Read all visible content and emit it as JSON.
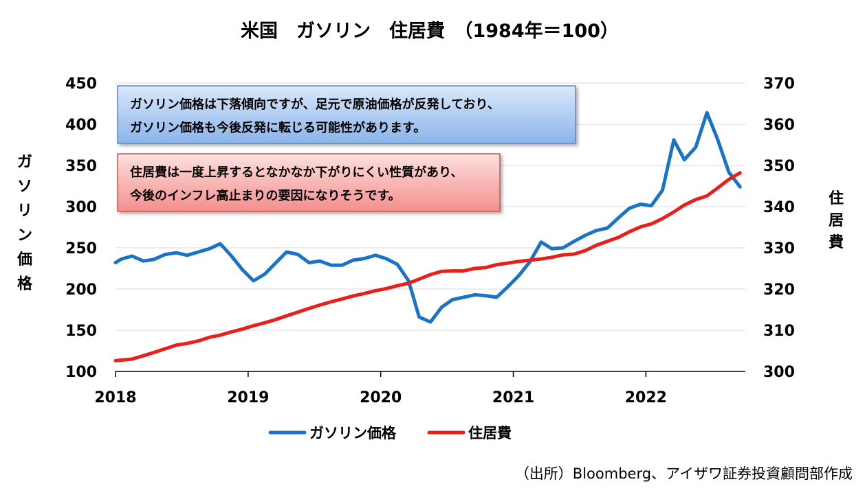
{
  "chart_data": {
    "type": "line",
    "title": "米国　ガソリン　住居費　（1984年＝100）",
    "y_left_label": "ガソリン価格",
    "y_right_label": "住居費",
    "y_left_ticks": [
      "450",
      "400",
      "350",
      "300",
      "250",
      "200",
      "150",
      "100"
    ],
    "y_right_ticks": [
      "370",
      "360",
      "350",
      "340",
      "330",
      "320",
      "310",
      "300"
    ],
    "x_ticks": [
      "2018",
      "2019",
      "2020",
      "2021",
      "2022"
    ],
    "ylim_left": [
      100,
      450
    ],
    "ylim_right": [
      300,
      370
    ],
    "xlim": [
      2018.0,
      2022.75
    ],
    "grid": true,
    "legend_position": "bottom",
    "series": [
      {
        "name": "ガソリン価格",
        "axis": "left",
        "color": "#1a73c4",
        "x": [
          2018.0,
          2018.04,
          2018.08,
          2018.125,
          2018.21,
          2018.29,
          2018.375,
          2018.46,
          2018.54,
          2018.625,
          2018.71,
          2018.79,
          2018.875,
          2018.96,
          2019.04,
          2019.125,
          2019.21,
          2019.29,
          2019.375,
          2019.46,
          2019.54,
          2019.625,
          2019.71,
          2019.79,
          2019.875,
          2019.96,
          2020.04,
          2020.125,
          2020.21,
          2020.29,
          2020.375,
          2020.46,
          2020.54,
          2020.625,
          2020.71,
          2020.79,
          2020.875,
          2020.96,
          2021.04,
          2021.125,
          2021.21,
          2021.29,
          2021.375,
          2021.46,
          2021.54,
          2021.625,
          2021.71,
          2021.79,
          2021.875,
          2021.96,
          2022.04,
          2022.125,
          2022.21,
          2022.29,
          2022.375,
          2022.46,
          2022.54,
          2022.625,
          2022.71
        ],
        "values": [
          232,
          236,
          238,
          240,
          234,
          236,
          242,
          244,
          241,
          245,
          249,
          255,
          240,
          223,
          210,
          218,
          232,
          245,
          242,
          232,
          234,
          229,
          229,
          235,
          237,
          241,
          237,
          230,
          210,
          166,
          160,
          178,
          187,
          190,
          193,
          192,
          190,
          203,
          216,
          233,
          257,
          249,
          250,
          258,
          265,
          271,
          274,
          286,
          298,
          303,
          301,
          320,
          381,
          357,
          372,
          414,
          382,
          342,
          324
        ]
      },
      {
        "name": "住居費",
        "axis": "right",
        "color": "#e8201a",
        "x": [
          2018.0,
          2018.125,
          2018.21,
          2018.29,
          2018.375,
          2018.46,
          2018.54,
          2018.625,
          2018.71,
          2018.79,
          2018.875,
          2018.96,
          2019.04,
          2019.125,
          2019.21,
          2019.29,
          2019.375,
          2019.46,
          2019.54,
          2019.625,
          2019.71,
          2019.79,
          2019.875,
          2019.96,
          2020.04,
          2020.125,
          2020.21,
          2020.29,
          2020.375,
          2020.46,
          2020.54,
          2020.625,
          2020.71,
          2020.79,
          2020.875,
          2020.96,
          2021.04,
          2021.125,
          2021.21,
          2021.29,
          2021.375,
          2021.46,
          2021.54,
          2021.625,
          2021.71,
          2021.79,
          2021.875,
          2021.96,
          2022.04,
          2022.125,
          2022.21,
          2022.29,
          2022.375,
          2022.46,
          2022.54,
          2022.625,
          2022.71
        ],
        "values": [
          302.6,
          303.0,
          303.8,
          304.6,
          305.5,
          306.4,
          306.8,
          307.4,
          308.3,
          308.8,
          309.6,
          310.3,
          311.1,
          311.8,
          312.6,
          313.5,
          314.4,
          315.3,
          316.1,
          316.9,
          317.6,
          318.3,
          318.9,
          319.6,
          320.1,
          320.8,
          321.4,
          322.4,
          323.5,
          324.3,
          324.4,
          324.4,
          325.0,
          325.2,
          325.9,
          326.3,
          326.7,
          327.0,
          327.3,
          327.7,
          328.3,
          328.5,
          329.3,
          330.6,
          331.6,
          332.5,
          333.9,
          335.1,
          335.8,
          337.1,
          338.7,
          340.4,
          341.7,
          342.6,
          344.5,
          346.6,
          348.2
        ]
      }
    ],
    "annotations": [
      {
        "lines": [
          "ガソリン価格は下落傾向ですが、足元で原油価格が反発しており、",
          "ガソリン価格も今後反発に転じる可能性があります。"
        ],
        "fill_top": "#dbe8fb",
        "fill_bottom": "#8ab4ea",
        "border": "#5a86c8"
      },
      {
        "lines": [
          "住居費は一度上昇するとなかなか下がりにくい性質があり、",
          "今後のインフレ高止まりの要因になりそうです。"
        ],
        "fill_top": "#fde0df",
        "fill_bottom": "#f38f8d",
        "border": "#c85550"
      }
    ]
  },
  "footer": {
    "source": "（出所）Bloomberg、アイザワ証券投資顧問部作成"
  }
}
